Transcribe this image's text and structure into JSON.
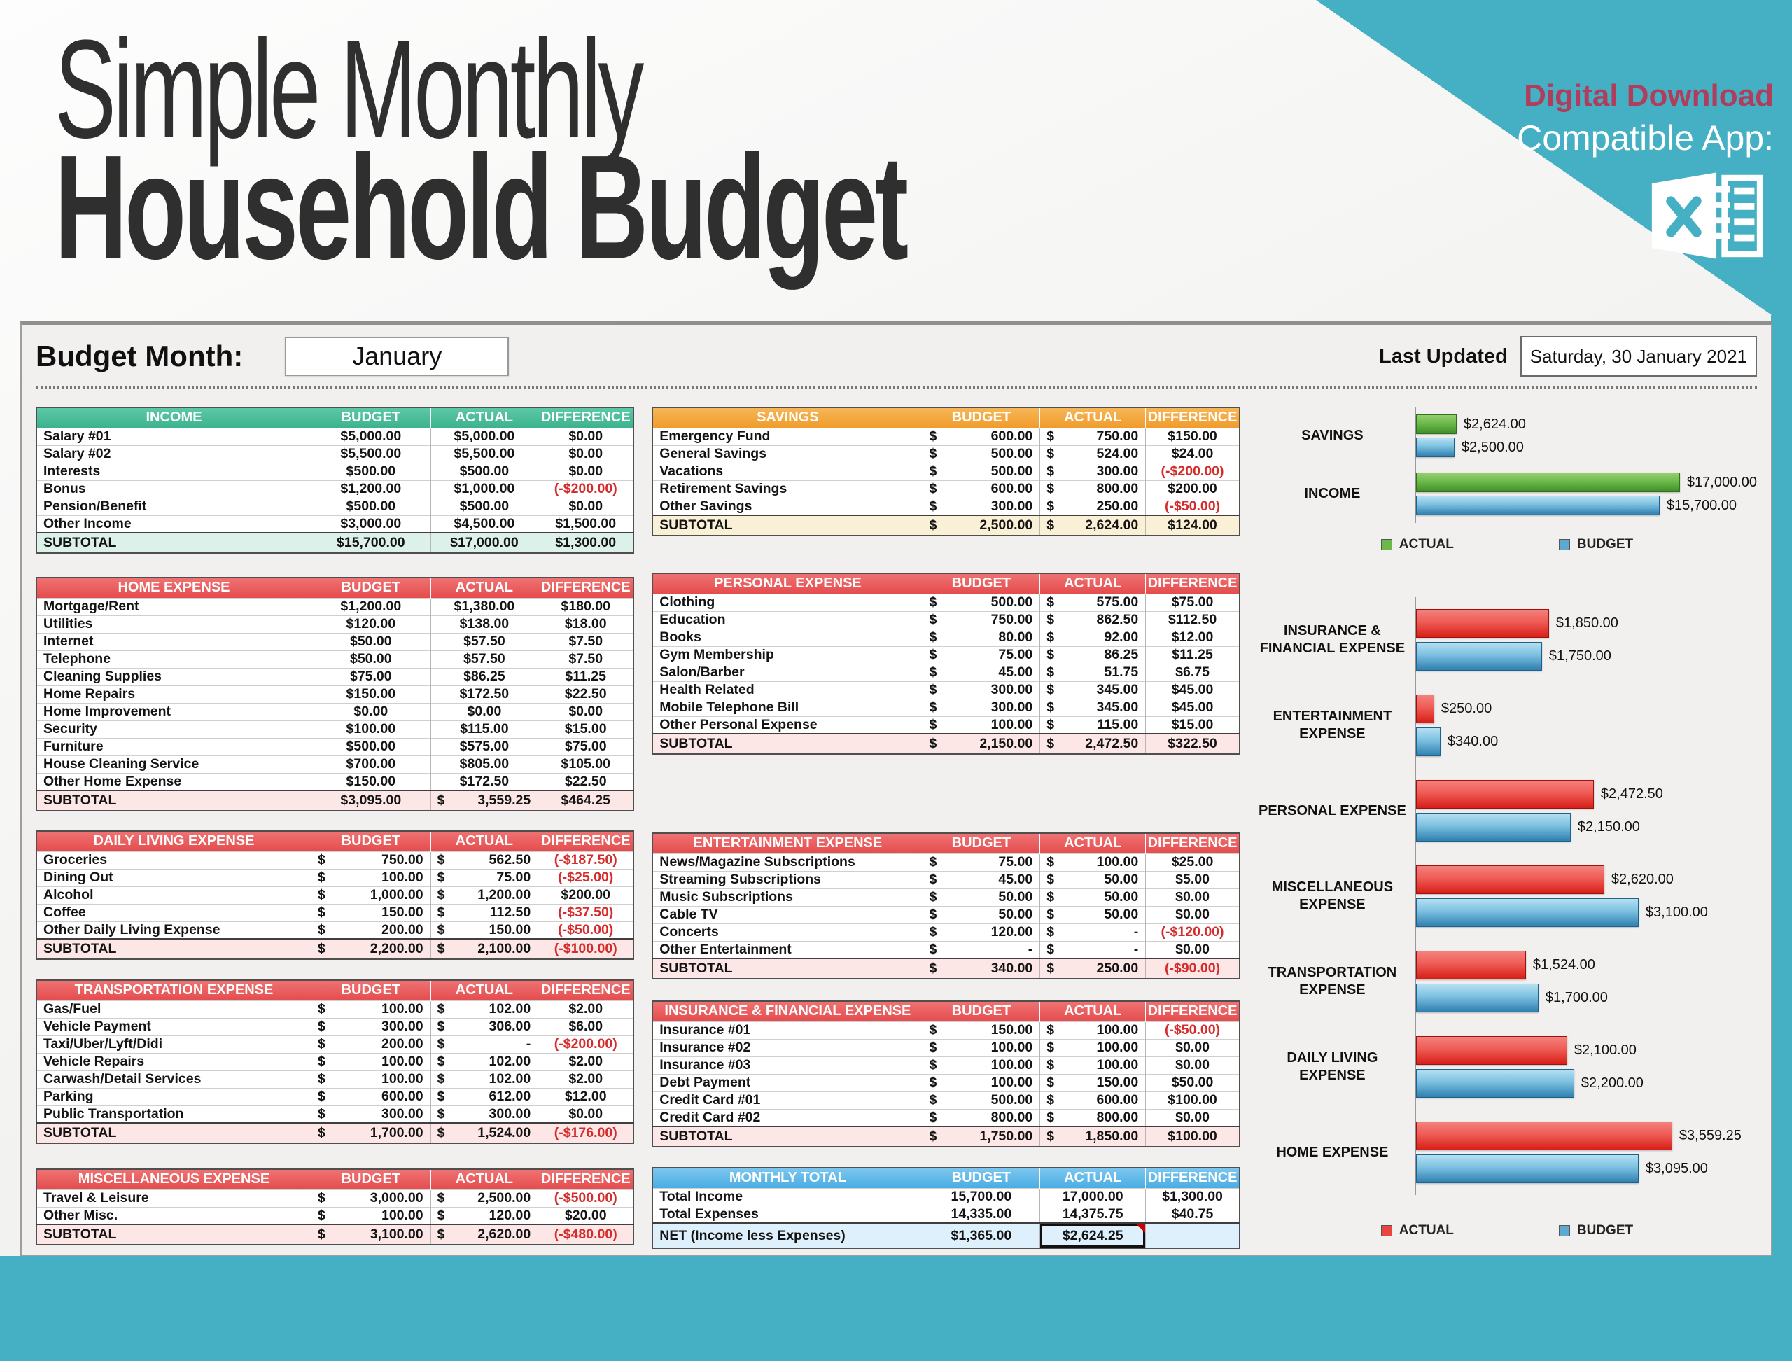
{
  "header": {
    "title_line1": "Simple Monthly",
    "title_line2": "Household Budget",
    "badge": "Digital Download",
    "compatible_label": "Compatible App:",
    "app_icon": "excel-icon"
  },
  "sheet": {
    "budget_month_label": "Budget Month:",
    "budget_month_value": "January",
    "last_updated_label": "Last Updated",
    "last_updated_value": "Saturday, 30 January 2021"
  },
  "columns": [
    "BUDGET",
    "ACTUAL",
    "DIFFERENCE"
  ],
  "colors": {
    "teal_background": "#45AFC3",
    "badge_red": "#B13D5C",
    "header_green": "#3DB28F",
    "header_orange": "#F09C2B",
    "header_red": "#E54C4E",
    "header_blue": "#4AADE4",
    "negative_red": "#D52B2B",
    "bar_actual_income": "#4F9C36",
    "bar_actual_expense": "#E0342E",
    "bar_budget": "#4E9FCC"
  },
  "tables": [
    {
      "id": "income",
      "title": "INCOME",
      "theme": "green",
      "area": "left",
      "rows": [
        {
          "label": "Salary #01",
          "cells": [
            "$5,000.00",
            "$5,000.00",
            "$0.00"
          ]
        },
        {
          "label": "Salary #02",
          "cells": [
            "$5,500.00",
            "$5,500.00",
            "$0.00"
          ]
        },
        {
          "label": "Interests",
          "cells": [
            "$500.00",
            "$500.00",
            "$0.00"
          ]
        },
        {
          "label": "Bonus",
          "cells": [
            "$1,200.00",
            "$1,000.00",
            "(-$200.00)"
          ]
        },
        {
          "label": "Pension/Benefit",
          "cells": [
            "$500.00",
            "$500.00",
            "$0.00"
          ]
        },
        {
          "label": "Other Income",
          "cells": [
            "$3,000.00",
            "$4,500.00",
            "$1,500.00"
          ]
        },
        {
          "label": "SUBTOTAL",
          "subtotal": true,
          "cells": [
            "$15,700.00",
            "$17,000.00",
            "$1,300.00"
          ]
        }
      ]
    },
    {
      "id": "home",
      "title": "HOME EXPENSE",
      "theme": "red",
      "area": "left",
      "rows": [
        {
          "label": "Mortgage/Rent",
          "cells": [
            "$1,200.00",
            "$1,380.00",
            "$180.00"
          ]
        },
        {
          "label": "Utilities",
          "cells": [
            "$120.00",
            "$138.00",
            "$18.00"
          ]
        },
        {
          "label": "Internet",
          "cells": [
            "$50.00",
            "$57.50",
            "$7.50"
          ]
        },
        {
          "label": "Telephone",
          "cells": [
            "$50.00",
            "$57.50",
            "$7.50"
          ]
        },
        {
          "label": "Cleaning Supplies",
          "cells": [
            "$75.00",
            "$86.25",
            "$11.25"
          ]
        },
        {
          "label": "Home Repairs",
          "cells": [
            "$150.00",
            "$172.50",
            "$22.50"
          ]
        },
        {
          "label": "Home Improvement",
          "cells": [
            "$0.00",
            "$0.00",
            "$0.00"
          ]
        },
        {
          "label": "Security",
          "cells": [
            "$100.00",
            "$115.00",
            "$15.00"
          ]
        },
        {
          "label": "Furniture",
          "cells": [
            "$500.00",
            "$575.00",
            "$75.00"
          ]
        },
        {
          "label": "House Cleaning Service",
          "cells": [
            "$700.00",
            "$805.00",
            "$105.00"
          ]
        },
        {
          "label": "Other Home Expense",
          "cells": [
            "$150.00",
            "$172.50",
            "$22.50"
          ]
        },
        {
          "label": "SUBTOTAL",
          "subtotal": true,
          "cells": [
            "$3,095.00",
            {
              "acc": "3,559.25"
            },
            "$464.25"
          ]
        }
      ]
    },
    {
      "id": "daily",
      "title": "DAILY LIVING EXPENSE",
      "theme": "red",
      "area": "left",
      "rows": [
        {
          "label": "Groceries",
          "cells": [
            {
              "acc": "750.00"
            },
            {
              "acc": "562.50"
            },
            "(-$187.50)"
          ]
        },
        {
          "label": "Dining Out",
          "cells": [
            {
              "acc": "100.00"
            },
            {
              "acc": "75.00"
            },
            "(-$25.00)"
          ]
        },
        {
          "label": "Alcohol",
          "cells": [
            {
              "acc": "1,000.00"
            },
            {
              "acc": "1,200.00"
            },
            "$200.00"
          ]
        },
        {
          "label": "Coffee",
          "cells": [
            {
              "acc": "150.00"
            },
            {
              "acc": "112.50"
            },
            "(-$37.50)"
          ]
        },
        {
          "label": "Other Daily Living Expense",
          "cells": [
            {
              "acc": "200.00"
            },
            {
              "acc": "150.00"
            },
            "(-$50.00)"
          ]
        },
        {
          "label": "SUBTOTAL",
          "subtotal": true,
          "cells": [
            {
              "acc": "2,200.00"
            },
            {
              "acc": "2,100.00"
            },
            "(-$100.00)"
          ]
        }
      ]
    },
    {
      "id": "transportation",
      "title": "TRANSPORTATION EXPENSE",
      "theme": "red",
      "area": "left",
      "rows": [
        {
          "label": "Gas/Fuel",
          "cells": [
            {
              "acc": "100.00"
            },
            {
              "acc": "102.00"
            },
            "$2.00"
          ]
        },
        {
          "label": "Vehicle Payment",
          "cells": [
            {
              "acc": "300.00"
            },
            {
              "acc": "306.00"
            },
            "$6.00"
          ]
        },
        {
          "label": "Taxi/Uber/Lyft/Didi",
          "cells": [
            {
              "acc": "200.00"
            },
            {
              "acc": "-"
            },
            "(-$200.00)"
          ]
        },
        {
          "label": "Vehicle Repairs",
          "cells": [
            {
              "acc": "100.00"
            },
            {
              "acc": "102.00"
            },
            "$2.00"
          ]
        },
        {
          "label": "Carwash/Detail Services",
          "cells": [
            {
              "acc": "100.00"
            },
            {
              "acc": "102.00"
            },
            "$2.00"
          ]
        },
        {
          "label": "Parking",
          "cells": [
            {
              "acc": "600.00"
            },
            {
              "acc": "612.00"
            },
            "$12.00"
          ]
        },
        {
          "label": "Public Transportation",
          "cells": [
            {
              "acc": "300.00"
            },
            {
              "acc": "300.00"
            },
            "$0.00"
          ]
        },
        {
          "label": "SUBTOTAL",
          "subtotal": true,
          "cells": [
            {
              "acc": "1,700.00"
            },
            {
              "acc": "1,524.00"
            },
            "(-$176.00)"
          ]
        }
      ]
    },
    {
      "id": "misc",
      "title": "MISCELLANEOUS EXPENSE",
      "theme": "red",
      "area": "left",
      "rows": [
        {
          "label": "Travel & Leisure",
          "cells": [
            {
              "acc": "3,000.00"
            },
            {
              "acc": "2,500.00"
            },
            "(-$500.00)"
          ]
        },
        {
          "label": "Other Misc.",
          "cells": [
            {
              "acc": "100.00"
            },
            {
              "acc": "120.00"
            },
            "$20.00"
          ]
        },
        {
          "label": "SUBTOTAL",
          "subtotal": true,
          "cells": [
            {
              "acc": "3,100.00"
            },
            {
              "acc": "2,620.00"
            },
            "(-$480.00)"
          ]
        }
      ]
    },
    {
      "id": "savings",
      "title": "SAVINGS",
      "theme": "orange",
      "area": "mid",
      "rows": [
        {
          "label": "Emergency Fund",
          "cells": [
            {
              "acc": "600.00"
            },
            {
              "acc": "750.00"
            },
            "$150.00"
          ]
        },
        {
          "label": "General Savings",
          "cells": [
            {
              "acc": "500.00"
            },
            {
              "acc": "524.00"
            },
            "$24.00"
          ]
        },
        {
          "label": "Vacations",
          "cells": [
            {
              "acc": "500.00"
            },
            {
              "acc": "300.00"
            },
            "(-$200.00)"
          ]
        },
        {
          "label": "Retirement Savings",
          "cells": [
            {
              "acc": "600.00"
            },
            {
              "acc": "800.00"
            },
            "$200.00"
          ]
        },
        {
          "label": "Other Savings",
          "cells": [
            {
              "acc": "300.00"
            },
            {
              "acc": "250.00"
            },
            "(-$50.00)"
          ]
        },
        {
          "label": "SUBTOTAL",
          "subtotal": true,
          "cells": [
            {
              "acc": "2,500.00"
            },
            {
              "acc": "2,624.00"
            },
            "$124.00"
          ]
        }
      ]
    },
    {
      "id": "personal",
      "title": "PERSONAL EXPENSE",
      "theme": "red",
      "area": "mid",
      "rows": [
        {
          "label": "Clothing",
          "cells": [
            {
              "acc": "500.00"
            },
            {
              "acc": "575.00"
            },
            "$75.00"
          ]
        },
        {
          "label": "Education",
          "cells": [
            {
              "acc": "750.00"
            },
            {
              "acc": "862.50"
            },
            "$112.50"
          ]
        },
        {
          "label": "Books",
          "cells": [
            {
              "acc": "80.00"
            },
            {
              "acc": "92.00"
            },
            "$12.00"
          ]
        },
        {
          "label": "Gym Membership",
          "cells": [
            {
              "acc": "75.00"
            },
            {
              "acc": "86.25"
            },
            "$11.25"
          ]
        },
        {
          "label": "Salon/Barber",
          "cells": [
            {
              "acc": "45.00"
            },
            {
              "acc": "51.75"
            },
            "$6.75"
          ]
        },
        {
          "label": "Health Related",
          "cells": [
            {
              "acc": "300.00"
            },
            {
              "acc": "345.00"
            },
            "$45.00"
          ]
        },
        {
          "label": "Mobile Telephone Bill",
          "cells": [
            {
              "acc": "300.00"
            },
            {
              "acc": "345.00"
            },
            "$45.00"
          ]
        },
        {
          "label": "Other Personal Expense",
          "cells": [
            {
              "acc": "100.00"
            },
            {
              "acc": "115.00"
            },
            "$15.00"
          ]
        },
        {
          "label": "SUBTOTAL",
          "subtotal": true,
          "cells": [
            {
              "acc": "2,150.00"
            },
            {
              "acc": "2,472.50"
            },
            "$322.50"
          ]
        }
      ]
    },
    {
      "id": "entertainment",
      "title": "ENTERTAINMENT EXPENSE",
      "theme": "red",
      "area": "mid",
      "rows": [
        {
          "label": "News/Magazine Subscriptions",
          "cells": [
            {
              "acc": "75.00"
            },
            {
              "acc": "100.00"
            },
            "$25.00"
          ]
        },
        {
          "label": "Streaming Subscriptions",
          "cells": [
            {
              "acc": "45.00"
            },
            {
              "acc": "50.00"
            },
            "$5.00"
          ]
        },
        {
          "label": "Music Subscriptions",
          "cells": [
            {
              "acc": "50.00"
            },
            {
              "acc": "50.00"
            },
            "$0.00"
          ]
        },
        {
          "label": "Cable TV",
          "cells": [
            {
              "acc": "50.00"
            },
            {
              "acc": "50.00"
            },
            "$0.00"
          ]
        },
        {
          "label": "Concerts",
          "cells": [
            {
              "acc": "120.00"
            },
            {
              "acc": "-"
            },
            "(-$120.00)"
          ]
        },
        {
          "label": "Other Entertainment",
          "cells": [
            {
              "acc": "-"
            },
            {
              "acc": "-"
            },
            "$0.00"
          ]
        },
        {
          "label": "SUBTOTAL",
          "subtotal": true,
          "cells": [
            {
              "acc": "340.00"
            },
            {
              "acc": "250.00"
            },
            "(-$90.00)"
          ]
        }
      ]
    },
    {
      "id": "insurance",
      "title": "INSURANCE & FINANCIAL EXPENSE",
      "theme": "red",
      "area": "mid",
      "rows": [
        {
          "label": "Insurance #01",
          "cells": [
            {
              "acc": "150.00"
            },
            {
              "acc": "100.00"
            },
            "(-$50.00)"
          ]
        },
        {
          "label": "Insurance #02",
          "cells": [
            {
              "acc": "100.00"
            },
            {
              "acc": "100.00"
            },
            "$0.00"
          ]
        },
        {
          "label": "Insurance #03",
          "cells": [
            {
              "acc": "100.00"
            },
            {
              "acc": "100.00"
            },
            "$0.00"
          ]
        },
        {
          "label": "Debt Payment",
          "cells": [
            {
              "acc": "100.00"
            },
            {
              "acc": "150.00"
            },
            "$50.00"
          ]
        },
        {
          "label": "Credit Card #01",
          "cells": [
            {
              "acc": "500.00"
            },
            {
              "acc": "600.00"
            },
            "$100.00"
          ]
        },
        {
          "label": "Credit Card #02",
          "cells": [
            {
              "acc": "800.00"
            },
            {
              "acc": "800.00"
            },
            "$0.00"
          ]
        },
        {
          "label": "SUBTOTAL",
          "subtotal": true,
          "cells": [
            {
              "acc": "1,750.00"
            },
            {
              "acc": "1,850.00"
            },
            "$100.00"
          ]
        }
      ]
    },
    {
      "id": "monthly",
      "title": "MONTHLY TOTAL",
      "theme": "blue",
      "area": "mid",
      "rows": [
        {
          "label": "Total Income",
          "cells": [
            "15,700.00",
            "17,000.00",
            "$1,300.00"
          ]
        },
        {
          "label": "Total Expenses",
          "cells": [
            "14,335.00",
            "14,375.75",
            "$40.75"
          ]
        },
        {
          "label": "NET (Income less Expenses)",
          "net": true,
          "cells": [
            "$1,365.00",
            "$2,624.25",
            ""
          ]
        }
      ]
    }
  ],
  "chart_data": [
    {
      "type": "bar",
      "orientation": "horizontal",
      "title": "",
      "categories": [
        "SAVINGS",
        "INCOME"
      ],
      "series": [
        {
          "name": "ACTUAL",
          "color": "green",
          "values": [
            2624,
            17000
          ],
          "labels": [
            "$2,624.00",
            "$17,000.00"
          ]
        },
        {
          "name": "BUDGET",
          "color": "blue",
          "values": [
            2500,
            15700
          ],
          "labels": [
            "$2,500.00",
            "$15,700.00"
          ]
        }
      ],
      "xlim": [
        0,
        17800
      ],
      "grid": false,
      "legend": [
        "ACTUAL",
        "BUDGET"
      ],
      "legend_position": "bottom"
    },
    {
      "type": "bar",
      "orientation": "horizontal",
      "title": "",
      "categories": [
        "INSURANCE & FINANCIAL EXPENSE",
        "ENTERTAINMENT EXPENSE",
        "PERSONAL EXPENSE",
        "MISCELLANEOUS EXPENSE",
        "TRANSPORTATION EXPENSE",
        "DAILY LIVING EXPENSE",
        "HOME EXPENSE"
      ],
      "series": [
        {
          "name": "ACTUAL",
          "color": "red",
          "values": [
            1850,
            250,
            2472.5,
            2620,
            1524,
            2100,
            3559.25
          ],
          "labels": [
            "$1,850.00",
            "$250.00",
            "$2,472.50",
            "$2,620.00",
            "$1,524.00",
            "$2,100.00",
            "$3,559.25"
          ]
        },
        {
          "name": "BUDGET",
          "color": "blue",
          "values": [
            1750,
            340,
            2150,
            3100,
            1700,
            2200,
            3095
          ],
          "labels": [
            "$1,750.00",
            "$340.00",
            "$2,150.00",
            "$3,100.00",
            "$1,700.00",
            "$2,200.00",
            "$3,095.00"
          ]
        }
      ],
      "xlim": [
        0,
        3650
      ],
      "grid": false,
      "legend": [
        "ACTUAL",
        "BUDGET"
      ],
      "legend_position": "bottom"
    }
  ]
}
